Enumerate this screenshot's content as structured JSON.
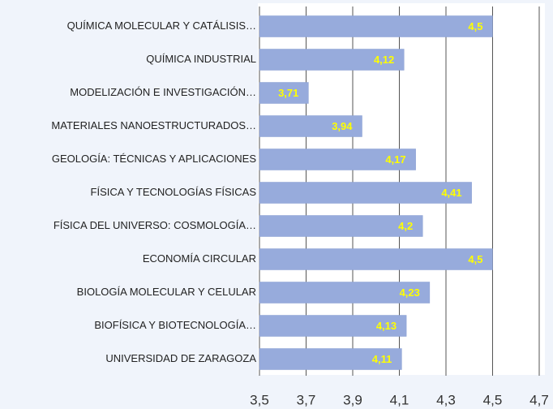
{
  "chart_data": {
    "type": "barh",
    "categories": [
      "QUÍMICA MOLECULAR Y CATÁLISIS…",
      "QUÍMICA INDUSTRIAL",
      "MODELIZACIÓN E INVESTIGACIÓN…",
      "MATERIALES NANOESTRUCTURADOS…",
      "GEOLOGÍA: TÉCNICAS Y APLICACIONES",
      "FÍSICA Y TECNOLOGÍAS FÍSICAS",
      "FÍSICA DEL UNIVERSO: COSMOLOGÍA…",
      "ECONOMÍA CIRCULAR",
      "BIOLOGÍA MOLECULAR Y CELULAR",
      "BIOFÍSICA Y BIOTECNOLOGÍA…",
      "UNIVERSIDAD DE ZARAGOZA"
    ],
    "values": [
      4.5,
      4.12,
      3.71,
      3.94,
      4.17,
      4.41,
      4.2,
      4.5,
      4.23,
      4.13,
      4.11
    ],
    "value_labels": [
      "4,5",
      "4,12",
      "3,71",
      "3,94",
      "4,17",
      "4,41",
      "4,2",
      "4,5",
      "4,23",
      "4,13",
      "4,11"
    ],
    "color": "#97abdc",
    "label_color": "#ffff00",
    "xlim": [
      3.5,
      4.7
    ],
    "xticks": [
      {
        "value": 3.5,
        "label": "3,5"
      },
      {
        "value": 3.7,
        "label": "3,7"
      },
      {
        "value": 3.9,
        "label": "3,9"
      },
      {
        "value": 4.1,
        "label": "4,1"
      },
      {
        "value": 4.3,
        "label": "4,3"
      },
      {
        "value": 4.5,
        "label": "4,5"
      },
      {
        "value": 4.7,
        "label": "4,7"
      }
    ],
    "grid": true
  }
}
